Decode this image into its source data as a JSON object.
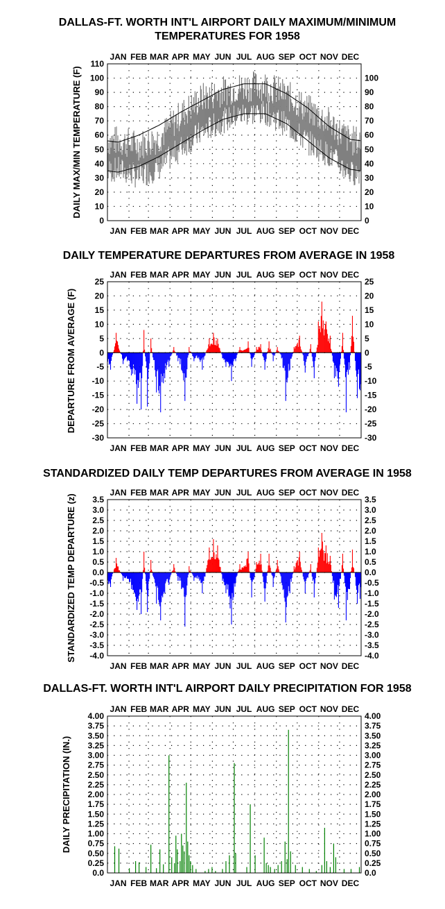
{
  "months": [
    "JAN",
    "FEB",
    "MAR",
    "APR",
    "MAY",
    "JUN",
    "JUL",
    "AUG",
    "SEP",
    "OCT",
    "NOV",
    "DEC"
  ],
  "colors": {
    "positive": "#ff0000",
    "negative": "#0000ff",
    "observed_range": "#808080",
    "normals": "#000000",
    "precip": "#008000"
  },
  "chart_data": [
    {
      "type": "area",
      "title_line1": "DALLAS-FT. WORTH INT'L AIRPORT DAILY MAXIMUM/MINIMUM",
      "title_line2": "TEMPERATURES FOR 1958",
      "ylabel": "DAILY MAX/MIN TEMPERATURE (F)",
      "xlabel": "",
      "ylim": [
        0,
        110
      ],
      "yticks": [
        "0",
        "10",
        "20",
        "30",
        "40",
        "50",
        "60",
        "70",
        "80",
        "90",
        "100",
        "110"
      ],
      "yticks_right": [
        "0",
        "10",
        "20",
        "30",
        "40",
        "50",
        "60",
        "70",
        "80",
        "90",
        "100"
      ],
      "grid": "dotted",
      "normal_high_monthly": [
        55,
        60,
        67,
        76,
        84,
        92,
        96,
        96,
        89,
        79,
        66,
        57
      ],
      "normal_low_monthly": [
        34,
        38,
        45,
        54,
        63,
        71,
        75,
        75,
        68,
        56,
        44,
        36
      ],
      "observed_max_monthly": [
        56,
        53,
        58,
        74,
        86,
        91,
        94,
        95,
        88,
        78,
        69,
        56
      ],
      "observed_min_monthly": [
        36,
        31,
        37,
        51,
        62,
        70,
        75,
        76,
        67,
        55,
        46,
        33
      ]
    },
    {
      "type": "bar",
      "title": "DAILY TEMPERATURE DEPARTURES FROM AVERAGE IN 1958",
      "ylabel": "DEPARTURE FROM AVERAGE (F)",
      "xlabel": "",
      "ylim": [
        -30,
        25
      ],
      "yticks": [
        "-30",
        "-25",
        "-20",
        "-15",
        "-10",
        "-5",
        "0",
        "5",
        "10",
        "15",
        "20",
        "25"
      ],
      "grid": "dotted",
      "departures": [
        [
          4,
          -6
        ],
        [
          12,
          7
        ],
        [
          22,
          -4
        ],
        [
          28,
          -3
        ],
        [
          34,
          -8
        ],
        [
          42,
          -18
        ],
        [
          48,
          -20
        ],
        [
          52,
          8
        ],
        [
          57,
          -19
        ],
        [
          62,
          5
        ],
        [
          70,
          -14
        ],
        [
          76,
          -21
        ],
        [
          82,
          -9
        ],
        [
          88,
          -5
        ],
        [
          95,
          2
        ],
        [
          101,
          -3
        ],
        [
          106,
          -6
        ],
        [
          111,
          -17
        ],
        [
          117,
          2
        ],
        [
          124,
          -3
        ],
        [
          130,
          -2
        ],
        [
          136,
          -6
        ],
        [
          140,
          -1
        ],
        [
          146,
          5
        ],
        [
          152,
          7
        ],
        [
          158,
          5
        ],
        [
          165,
          -2
        ],
        [
          170,
          -5
        ],
        [
          178,
          -10
        ],
        [
          184,
          -3
        ],
        [
          190,
          2
        ],
        [
          196,
          1
        ],
        [
          202,
          4
        ],
        [
          207,
          -5
        ],
        [
          214,
          2
        ],
        [
          220,
          3
        ],
        [
          226,
          -6
        ],
        [
          232,
          4
        ],
        [
          238,
          -3
        ],
        [
          244,
          2
        ],
        [
          250,
          -2
        ],
        [
          256,
          -17
        ],
        [
          262,
          -6
        ],
        [
          268,
          2
        ],
        [
          276,
          6
        ],
        [
          284,
          -7
        ],
        [
          292,
          3
        ],
        [
          297,
          -9
        ],
        [
          303,
          11
        ],
        [
          308,
          18
        ],
        [
          314,
          11
        ],
        [
          320,
          6
        ],
        [
          326,
          -9
        ],
        [
          332,
          -12
        ],
        [
          338,
          7
        ],
        [
          343,
          -21
        ],
        [
          348,
          -6
        ],
        [
          352,
          13
        ],
        [
          359,
          -16
        ]
      ]
    },
    {
      "type": "bar",
      "title": "STANDARDIZED DAILY TEMP DEPARTURES FROM AVERAGE IN 1958",
      "ylabel": "STANDARDIZED TEMP DEPARTURE (z)",
      "xlabel": "",
      "ylim": [
        -4.0,
        3.5
      ],
      "yticks": [
        "-4.0",
        "-3.5",
        "-3.0",
        "-2.5",
        "-2.0",
        "-1.5",
        "-1.0",
        "-0.5",
        "0.0",
        "0.5",
        "1.0",
        "1.5",
        "2.0",
        "2.5",
        "3.0",
        "3.5"
      ],
      "grid": "dotted",
      "departures": [
        [
          4,
          -0.7
        ],
        [
          12,
          0.7
        ],
        [
          22,
          -0.4
        ],
        [
          28,
          -0.3
        ],
        [
          34,
          -0.8
        ],
        [
          42,
          -1.8
        ],
        [
          48,
          -2.0
        ],
        [
          52,
          1.0
        ],
        [
          57,
          -1.9
        ],
        [
          62,
          0.6
        ],
        [
          70,
          -1.5
        ],
        [
          76,
          -2.3
        ],
        [
          82,
          -1.0
        ],
        [
          88,
          -0.6
        ],
        [
          95,
          0.4
        ],
        [
          101,
          -0.4
        ],
        [
          106,
          -0.8
        ],
        [
          111,
          -2.6
        ],
        [
          117,
          0.3
        ],
        [
          124,
          -0.4
        ],
        [
          130,
          -0.3
        ],
        [
          136,
          -1.0
        ],
        [
          140,
          -0.2
        ],
        [
          146,
          1.2
        ],
        [
          152,
          1.6
        ],
        [
          158,
          1.3
        ],
        [
          165,
          -0.4
        ],
        [
          170,
          -1.0
        ],
        [
          178,
          -2.5
        ],
        [
          184,
          -0.5
        ],
        [
          190,
          0.4
        ],
        [
          196,
          0.3
        ],
        [
          202,
          1.0
        ],
        [
          207,
          -1.2
        ],
        [
          214,
          0.5
        ],
        [
          220,
          0.9
        ],
        [
          226,
          -1.4
        ],
        [
          232,
          0.9
        ],
        [
          238,
          -0.7
        ],
        [
          244,
          0.6
        ],
        [
          250,
          -0.5
        ],
        [
          256,
          -2.4
        ],
        [
          262,
          -1.0
        ],
        [
          268,
          0.3
        ],
        [
          276,
          1.0
        ],
        [
          284,
          -1.0
        ],
        [
          292,
          0.4
        ],
        [
          297,
          -1.2
        ],
        [
          303,
          1.2
        ],
        [
          308,
          1.9
        ],
        [
          314,
          1.3
        ],
        [
          320,
          0.8
        ],
        [
          326,
          -1.3
        ],
        [
          332,
          -1.7
        ],
        [
          338,
          0.9
        ],
        [
          343,
          -2.3
        ],
        [
          348,
          -0.8
        ],
        [
          352,
          1.1
        ],
        [
          359,
          -1.5
        ]
      ]
    },
    {
      "type": "bar",
      "title": "DALLAS-FT. WORTH INT'L AIRPORT DAILY PRECIPITATION FOR 1958",
      "ylabel": "DAILY PRECIPITATION (IN.)",
      "xlabel": "",
      "ylim": [
        0,
        4.0
      ],
      "yticks": [
        "0.0",
        "0.25",
        "0.50",
        "0.75",
        "1.00",
        "1.25",
        "1.50",
        "1.75",
        "2.00",
        "2.25",
        "2.50",
        "2.75",
        "3.00",
        "3.25",
        "3.50",
        "3.75",
        "4.00"
      ],
      "grid": "dotted",
      "precip": [
        [
          10,
          0.68
        ],
        [
          16,
          0.62
        ],
        [
          31,
          0.12
        ],
        [
          40,
          0.3
        ],
        [
          45,
          0.27
        ],
        [
          55,
          0.15
        ],
        [
          62,
          0.72
        ],
        [
          70,
          0.12
        ],
        [
          75,
          0.6
        ],
        [
          80,
          0.22
        ],
        [
          88,
          3.0
        ],
        [
          92,
          0.4
        ],
        [
          96,
          0.25
        ],
        [
          98,
          0.95
        ],
        [
          100,
          0.6
        ],
        [
          104,
          0.3
        ],
        [
          106,
          1.0
        ],
        [
          108,
          0.7
        ],
        [
          110,
          0.55
        ],
        [
          113,
          2.3
        ],
        [
          115,
          0.8
        ],
        [
          117,
          0.45
        ],
        [
          119,
          0.3
        ],
        [
          122,
          0.2
        ],
        [
          127,
          0.1
        ],
        [
          140,
          0.05
        ],
        [
          145,
          0.1
        ],
        [
          150,
          0.15
        ],
        [
          155,
          0.05
        ],
        [
          165,
          0.1
        ],
        [
          170,
          0.3
        ],
        [
          175,
          0.45
        ],
        [
          182,
          2.8
        ],
        [
          184,
          0.5
        ],
        [
          200,
          0.15
        ],
        [
          205,
          1.75
        ],
        [
          212,
          0.45
        ],
        [
          225,
          0.9
        ],
        [
          228,
          0.25
        ],
        [
          231,
          0.2
        ],
        [
          234,
          0.15
        ],
        [
          240,
          0.1
        ],
        [
          245,
          0.2
        ],
        [
          250,
          0.3
        ],
        [
          255,
          0.8
        ],
        [
          258,
          0.35
        ],
        [
          260,
          3.65
        ],
        [
          263,
          0.55
        ],
        [
          270,
          0.2
        ],
        [
          280,
          0.15
        ],
        [
          290,
          0.1
        ],
        [
          300,
          0.05
        ],
        [
          308,
          0.2
        ],
        [
          312,
          1.15
        ],
        [
          315,
          0.3
        ],
        [
          320,
          0.15
        ],
        [
          325,
          0.75
        ],
        [
          328,
          0.4
        ],
        [
          340,
          0.1
        ],
        [
          350,
          0.1
        ],
        [
          362,
          0.15
        ]
      ]
    }
  ]
}
